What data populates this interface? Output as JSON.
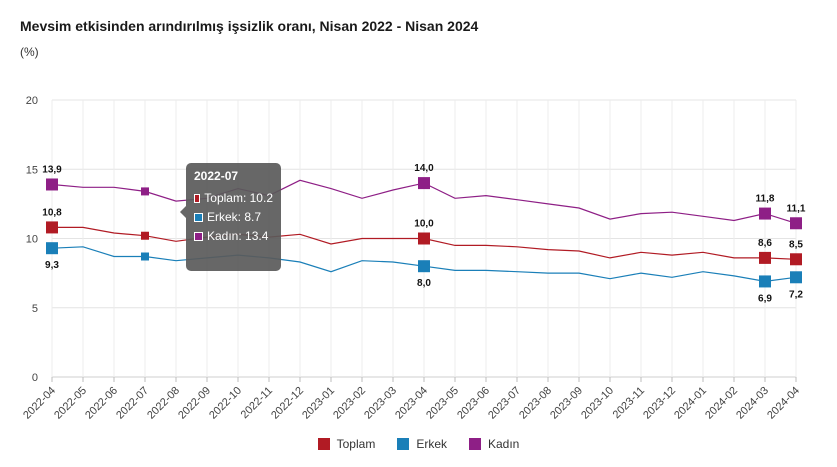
{
  "title": "Mevsim etkisinden arındırılmış işsizlik oranı, Nisan 2022 - Nisan 2024",
  "unit": "(%)",
  "chart_data": {
    "type": "line",
    "categories": [
      "2022-04",
      "2022-05",
      "2022-06",
      "2022-07",
      "2022-08",
      "2022-09",
      "2022-10",
      "2022-11",
      "2022-12",
      "2023-01",
      "2023-02",
      "2023-03",
      "2023-04",
      "2023-05",
      "2023-06",
      "2023-07",
      "2023-08",
      "2023-09",
      "2023-10",
      "2023-11",
      "2023-12",
      "2024-01",
      "2024-02",
      "2024-03",
      "2024-04"
    ],
    "ylim": [
      0,
      20
    ],
    "yticks": [
      0,
      5,
      10,
      15,
      20
    ],
    "grid": true,
    "legend_position": "bottom",
    "series": [
      {
        "name": "Toplam",
        "color": "#b11b24",
        "values": [
          10.8,
          10.8,
          10.4,
          10.2,
          9.8,
          10.1,
          10.3,
          10.1,
          10.3,
          9.6,
          10.0,
          10.0,
          10.0,
          9.5,
          9.5,
          9.4,
          9.2,
          9.1,
          8.6,
          9.0,
          8.8,
          9.0,
          8.6,
          8.6,
          8.5
        ]
      },
      {
        "name": "Erkek",
        "color": "#1a7fb8",
        "values": [
          9.3,
          9.4,
          8.7,
          8.7,
          8.4,
          8.6,
          8.8,
          8.6,
          8.3,
          7.6,
          8.4,
          8.3,
          8.0,
          7.7,
          7.7,
          7.6,
          7.5,
          7.5,
          7.1,
          7.5,
          7.2,
          7.6,
          7.3,
          6.9,
          7.2
        ]
      },
      {
        "name": "Kadın",
        "color": "#8e1f86",
        "values": [
          13.9,
          13.7,
          13.7,
          13.4,
          12.7,
          12.9,
          13.6,
          13.1,
          14.2,
          13.6,
          12.9,
          13.5,
          14.0,
          12.9,
          13.1,
          12.8,
          12.5,
          12.2,
          11.4,
          11.8,
          11.9,
          11.6,
          11.3,
          11.8,
          11.1
        ]
      }
    ],
    "data_labels": [
      {
        "series": 2,
        "index": 0,
        "text": "13,9"
      },
      {
        "series": 0,
        "index": 0,
        "text": "10,8"
      },
      {
        "series": 1,
        "index": 0,
        "text": "9,3"
      },
      {
        "series": 2,
        "index": 12,
        "text": "14,0"
      },
      {
        "series": 0,
        "index": 12,
        "text": "10,0"
      },
      {
        "series": 1,
        "index": 12,
        "text": "8,0"
      },
      {
        "series": 2,
        "index": 23,
        "text": "11,8"
      },
      {
        "series": 0,
        "index": 23,
        "text": "8,6"
      },
      {
        "series": 1,
        "index": 23,
        "text": "6,9"
      },
      {
        "series": 2,
        "index": 24,
        "text": "11,1"
      },
      {
        "series": 0,
        "index": 24,
        "text": "8,5"
      },
      {
        "series": 1,
        "index": 24,
        "text": "7,2"
      }
    ],
    "big_marker_indices": [
      0,
      12,
      23,
      24
    ],
    "hover_index": 3
  },
  "tooltip": {
    "title": "2022-07",
    "rows": [
      {
        "text": "Toplam: 10.2",
        "color": "#b11b24"
      },
      {
        "text": "Erkek: 8.7",
        "color": "#1a7fb8"
      },
      {
        "text": "Kadın: 13.4",
        "color": "#8e1f86"
      }
    ]
  },
  "legend": [
    {
      "label": "Toplam",
      "color": "#b11b24"
    },
    {
      "label": "Erkek",
      "color": "#1a7fb8"
    },
    {
      "label": "Kadın",
      "color": "#8e1f86"
    }
  ]
}
